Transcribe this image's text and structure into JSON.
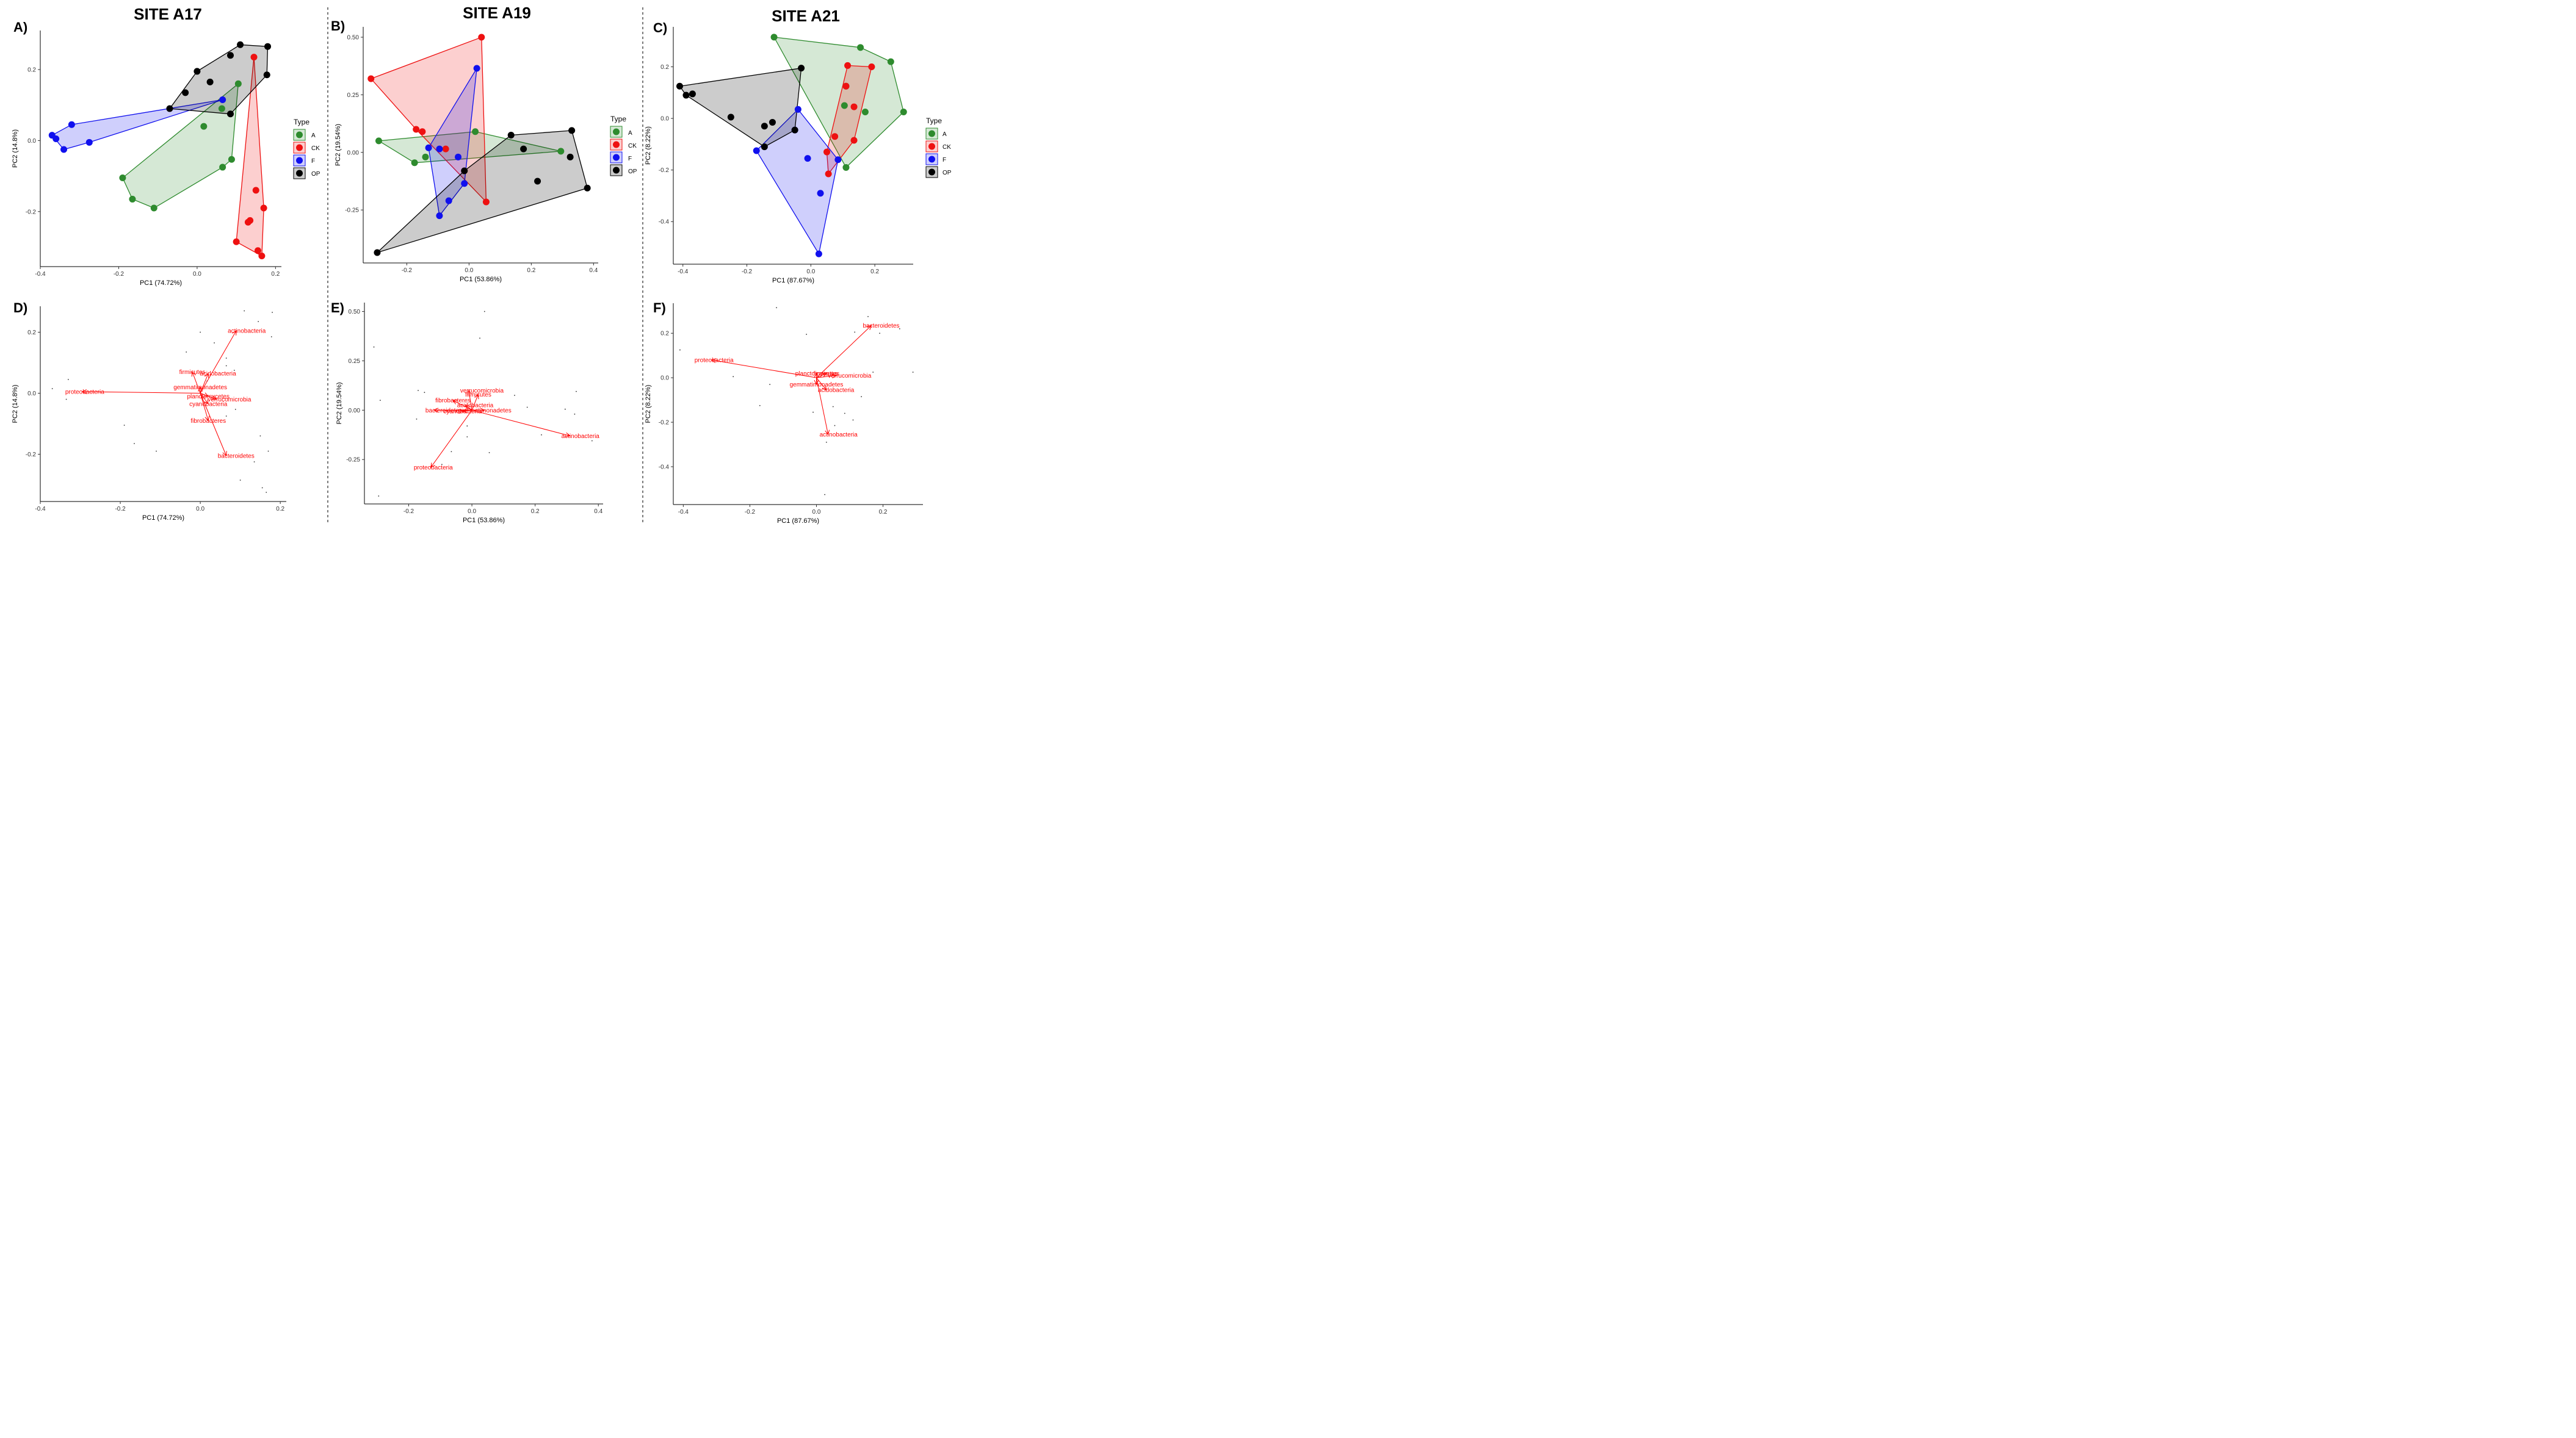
{
  "figure": {
    "sites": [
      "SITE A17",
      "SITE A19",
      "SITE A21"
    ],
    "panel_letters": [
      "A)",
      "B)",
      "C)",
      "D)",
      "E)",
      "F)"
    ],
    "legend": {
      "title": "Type",
      "entries": [
        {
          "label": "A",
          "color": "#2e8b2e"
        },
        {
          "label": "CK",
          "color": "#ee1111"
        },
        {
          "label": "F",
          "color": "#1010ee"
        },
        {
          "label": "OP",
          "color": "#000000"
        }
      ]
    }
  },
  "chart_data": [
    {
      "type": "scatter",
      "panel": "A)",
      "title": "SITE A17",
      "xlabel": "PC1 (74.72%)",
      "ylabel": "PC2 (14.8%)",
      "xlim": [
        -0.4,
        0.215
      ],
      "ylim": [
        -0.355,
        0.31
      ],
      "xticks": [
        -0.4,
        -0.2,
        0.0,
        0.2
      ],
      "xtick_labels": [
        "-0.4",
        "-0.2",
        "0.0",
        "0.2"
      ],
      "yticks": [
        -0.2,
        0.0,
        0.2
      ],
      "ytick_labels": [
        "-0.2",
        "0.0",
        "0.2"
      ],
      "hull_type": "convex",
      "series": [
        {
          "name": "A",
          "points": [
            [
              -0.19,
              -0.105
            ],
            [
              -0.165,
              -0.165
            ],
            [
              -0.11,
              -0.19
            ],
            [
              0.017,
              0.04
            ],
            [
              0.063,
              0.09
            ],
            [
              0.065,
              -0.075
            ],
            [
              0.088,
              -0.053
            ],
            [
              0.105,
              0.16
            ]
          ]
        },
        {
          "name": "CK",
          "points": [
            [
              0.145,
              0.235
            ],
            [
              0.15,
              -0.14
            ],
            [
              0.17,
              -0.19
            ],
            [
              0.135,
              -0.225
            ],
            [
              0.13,
              -0.23
            ],
            [
              0.1,
              -0.285
            ],
            [
              0.155,
              -0.31
            ],
            [
              0.165,
              -0.325
            ]
          ]
        },
        {
          "name": "F",
          "points": [
            [
              -0.37,
              0.015
            ],
            [
              -0.36,
              0.005
            ],
            [
              -0.32,
              0.045
            ],
            [
              -0.34,
              -0.025
            ],
            [
              -0.275,
              -0.005
            ],
            [
              0.065,
              0.115
            ]
          ]
        },
        {
          "name": "OP",
          "points": [
            [
              0.11,
              0.27
            ],
            [
              0.18,
              0.265
            ],
            [
              0.178,
              0.185
            ],
            [
              0.085,
              0.24
            ],
            [
              0.0,
              0.195
            ],
            [
              0.033,
              0.165
            ],
            [
              -0.03,
              0.135
            ],
            [
              -0.07,
              0.09
            ],
            [
              0.085,
              0.075
            ]
          ]
        }
      ]
    },
    {
      "type": "scatter",
      "panel": "B)",
      "title": "SITE A19",
      "xlabel": "PC1 (53.86%)",
      "ylabel": "PC2 (19.54%)",
      "xlim": [
        -0.34,
        0.415
      ],
      "ylim": [
        -0.48,
        0.545
      ],
      "xticks": [
        -0.2,
        0.0,
        0.2,
        0.4
      ],
      "xtick_labels": [
        "-0.2",
        "0.0",
        "0.2",
        "0.4"
      ],
      "yticks": [
        -0.25,
        0.0,
        0.25,
        0.5
      ],
      "ytick_labels": [
        "-0.25",
        "0.00",
        "0.25",
        "0.50"
      ],
      "hull_type": "convex",
      "series": [
        {
          "name": "A",
          "points": [
            [
              -0.29,
              0.05
            ],
            [
              -0.175,
              -0.045
            ],
            [
              -0.14,
              -0.02
            ],
            [
              0.02,
              0.09
            ],
            [
              0.295,
              0.005
            ]
          ]
        },
        {
          "name": "CK",
          "points": [
            [
              0.04,
              0.5
            ],
            [
              -0.315,
              0.32
            ],
            [
              -0.17,
              0.1
            ],
            [
              -0.15,
              0.09
            ],
            [
              -0.075,
              0.015
            ],
            [
              0.055,
              -0.215
            ]
          ]
        },
        {
          "name": "F",
          "points": [
            [
              0.025,
              0.365
            ],
            [
              -0.13,
              0.02
            ],
            [
              -0.095,
              0.015
            ],
            [
              -0.065,
              -0.21
            ],
            [
              -0.035,
              -0.02
            ],
            [
              -0.015,
              -0.135
            ],
            [
              -0.095,
              -0.275
            ]
          ]
        },
        {
          "name": "OP",
          "points": [
            [
              0.33,
              0.095
            ],
            [
              0.135,
              0.075
            ],
            [
              0.175,
              0.015
            ],
            [
              0.325,
              -0.02
            ],
            [
              0.22,
              -0.125
            ],
            [
              0.38,
              -0.155
            ],
            [
              -0.015,
              -0.08
            ],
            [
              -0.295,
              -0.435
            ]
          ]
        }
      ]
    },
    {
      "type": "scatter",
      "panel": "C)",
      "title": "SITE A21",
      "xlabel": "PC1 (87.67%)",
      "ylabel": "PC2 (8.22%)",
      "xlim": [
        -0.43,
        0.32
      ],
      "ylim": [
        -0.565,
        0.355
      ],
      "xticks": [
        -0.4,
        -0.2,
        0.0,
        0.2
      ],
      "xtick_labels": [
        "-0.4",
        "-0.2",
        "0.0",
        "0.2"
      ],
      "yticks": [
        -0.4,
        -0.2,
        0.0,
        0.2
      ],
      "ytick_labels": [
        "-0.4",
        "-0.2",
        "0.0",
        "0.2"
      ],
      "hull_type": "convex",
      "series": [
        {
          "name": "A",
          "points": [
            [
              -0.115,
              0.315
            ],
            [
              0.155,
              0.275
            ],
            [
              0.25,
              0.22
            ],
            [
              0.29,
              0.025
            ],
            [
              0.17,
              0.025
            ],
            [
              0.11,
              0.125
            ],
            [
              0.105,
              0.05
            ],
            [
              0.11,
              -0.19
            ]
          ]
        },
        {
          "name": "CK",
          "points": [
            [
              0.115,
              0.205
            ],
            [
              0.19,
              0.2
            ],
            [
              0.11,
              0.125
            ],
            [
              0.135,
              0.045
            ],
            [
              0.075,
              -0.07
            ],
            [
              0.135,
              -0.085
            ],
            [
              0.05,
              -0.13
            ],
            [
              0.055,
              -0.215
            ]
          ]
        },
        {
          "name": "F",
          "points": [
            [
              -0.04,
              0.035
            ],
            [
              -0.05,
              -0.045
            ],
            [
              -0.17,
              -0.125
            ],
            [
              -0.01,
              -0.155
            ],
            [
              0.085,
              -0.16
            ],
            [
              0.03,
              -0.29
            ],
            [
              0.025,
              -0.525
            ]
          ]
        },
        {
          "name": "OP",
          "points": [
            [
              -0.41,
              0.125
            ],
            [
              -0.39,
              0.09
            ],
            [
              -0.37,
              0.095
            ],
            [
              -0.25,
              0.005
            ],
            [
              -0.145,
              -0.03
            ],
            [
              -0.12,
              -0.015
            ],
            [
              -0.145,
              -0.11
            ],
            [
              -0.05,
              -0.045
            ],
            [
              -0.03,
              0.195
            ]
          ]
        }
      ]
    },
    {
      "type": "scatter",
      "panel": "D)",
      "title": "",
      "xlabel": "PC1 (74.72%)",
      "ylabel": "PC2 (14.8%)",
      "xlim": [
        -0.4,
        0.215
      ],
      "ylim": [
        -0.355,
        0.285
      ],
      "xticks": [
        -0.4,
        -0.2,
        0.0,
        0.2
      ],
      "xtick_labels": [
        "-0.4",
        "-0.2",
        "0.0",
        "0.2"
      ],
      "yticks": [
        -0.2,
        0.0,
        0.2
      ],
      "ytick_labels": [
        "-0.2",
        "0.0",
        "0.2"
      ],
      "dots": [
        [
          -0.37,
          0.015
        ],
        [
          -0.33,
          0.045
        ],
        [
          -0.335,
          -0.02
        ],
        [
          -0.19,
          -0.105
        ],
        [
          -0.165,
          -0.165
        ],
        [
          -0.11,
          -0.19
        ],
        [
          -0.035,
          0.135
        ],
        [
          0.0,
          0.2
        ],
        [
          0.035,
          0.165
        ],
        [
          0.065,
          0.09
        ],
        [
          0.085,
          0.075
        ],
        [
          0.11,
          0.27
        ],
        [
          0.145,
          0.235
        ],
        [
          0.18,
          0.265
        ],
        [
          0.178,
          0.185
        ],
        [
          0.065,
          -0.075
        ],
        [
          0.088,
          -0.053
        ],
        [
          0.15,
          -0.14
        ],
        [
          0.17,
          -0.19
        ],
        [
          0.135,
          -0.225
        ],
        [
          0.1,
          -0.285
        ],
        [
          0.155,
          -0.31
        ],
        [
          0.165,
          -0.325
        ],
        [
          0.065,
          0.115
        ],
        [
          0.017,
          0.04
        ]
      ],
      "vectors": [
        {
          "label": "actinobacteria",
          "x": 0.09,
          "y": 0.205
        },
        {
          "label": "firmicutes",
          "x": -0.02,
          "y": 0.07
        },
        {
          "label": "acidobacteria",
          "x": 0.02,
          "y": 0.065
        },
        {
          "label": "gemmatimonadetes",
          "x": 0.0,
          "y": 0.02
        },
        {
          "label": "planctomycetes",
          "x": 0.02,
          "y": -0.01
        },
        {
          "label": "verrucomicrobia",
          "x": 0.04,
          "y": -0.02
        },
        {
          "label": "cyanobacteria",
          "x": 0.02,
          "y": -0.035
        },
        {
          "label": "fibrobacteres",
          "x": 0.02,
          "y": -0.09
        },
        {
          "label": "bacteroidetes",
          "x": 0.065,
          "y": -0.205
        },
        {
          "label": "proteobacteria",
          "x": -0.295,
          "y": 0.005
        }
      ]
    },
    {
      "type": "scatter",
      "panel": "E)",
      "title": "",
      "xlabel": "PC1 (53.86%)",
      "ylabel": "PC2 (19.54%)",
      "xlim": [
        -0.34,
        0.415
      ],
      "ylim": [
        -0.475,
        0.545
      ],
      "xticks": [
        -0.2,
        0.0,
        0.2,
        0.4
      ],
      "xtick_labels": [
        "-0.2",
        "0.0",
        "0.2",
        "0.4"
      ],
      "yticks": [
        -0.25,
        0.0,
        0.25,
        0.5
      ],
      "ytick_labels": [
        "-0.25",
        "0.00",
        "0.25",
        "0.50"
      ],
      "dots": [
        [
          -0.31,
          0.32
        ],
        [
          -0.29,
          0.05
        ],
        [
          -0.17,
          0.1
        ],
        [
          -0.15,
          0.09
        ],
        [
          -0.175,
          -0.045
        ],
        [
          0.04,
          0.5
        ],
        [
          0.025,
          0.365
        ],
        [
          0.135,
          0.075
        ],
        [
          0.175,
          0.015
        ],
        [
          0.33,
          0.095
        ],
        [
          0.325,
          -0.02
        ],
        [
          0.22,
          -0.125
        ],
        [
          0.38,
          -0.155
        ],
        [
          -0.015,
          -0.08
        ],
        [
          -0.065,
          -0.21
        ],
        [
          -0.095,
          -0.275
        ],
        [
          0.055,
          -0.215
        ],
        [
          -0.295,
          -0.435
        ],
        [
          0.295,
          0.005
        ],
        [
          -0.015,
          -0.135
        ]
      ],
      "vectors": [
        {
          "label": "verrucomicrobia",
          "x": -0.01,
          "y": 0.1
        },
        {
          "label": "firmicutes",
          "x": 0.02,
          "y": 0.08
        },
        {
          "label": "fibrobacteres",
          "x": -0.06,
          "y": 0.05
        },
        {
          "label": "acidobacteria",
          "x": -0.02,
          "y": 0.025
        },
        {
          "label": "gemmatimonadetes",
          "x": 0.04,
          "y": 0.0
        },
        {
          "label": "cyanobacteria",
          "x": -0.03,
          "y": -0.005
        },
        {
          "label": "bacteroidetes",
          "x": -0.12,
          "y": 0.0
        },
        {
          "label": "actinobacteria",
          "x": 0.31,
          "y": -0.13
        },
        {
          "label": "proteobacteria",
          "x": -0.13,
          "y": -0.29
        }
      ]
    },
    {
      "type": "scatter",
      "panel": "F)",
      "title": "",
      "xlabel": "PC1 (87.67%)",
      "ylabel": "PC2 (8.22%)",
      "xlim": [
        -0.43,
        0.32
      ],
      "ylim": [
        -0.57,
        0.335
      ],
      "xticks": [
        -0.4,
        -0.2,
        0.0,
        0.2
      ],
      "xtick_labels": [
        "-0.4",
        "-0.2",
        "0.0",
        "0.2"
      ],
      "yticks": [
        -0.4,
        -0.2,
        0.0,
        0.2
      ],
      "ytick_labels": [
        "-0.4",
        "-0.2",
        "0.0",
        "0.2"
      ],
      "dots": [
        [
          -0.41,
          0.125
        ],
        [
          -0.12,
          0.315
        ],
        [
          -0.03,
          0.195
        ],
        [
          -0.25,
          0.005
        ],
        [
          -0.14,
          -0.03
        ],
        [
          -0.17,
          -0.125
        ],
        [
          0.155,
          0.275
        ],
        [
          0.25,
          0.22
        ],
        [
          0.29,
          0.025
        ],
        [
          0.17,
          0.025
        ],
        [
          0.115,
          0.205
        ],
        [
          0.19,
          0.2
        ],
        [
          0.135,
          -0.085
        ],
        [
          0.11,
          -0.19
        ],
        [
          0.085,
          -0.16
        ],
        [
          -0.01,
          -0.155
        ],
        [
          0.03,
          -0.29
        ],
        [
          0.025,
          -0.525
        ],
        [
          0.05,
          -0.13
        ],
        [
          0.055,
          -0.215
        ]
      ],
      "vectors": [
        {
          "label": "bacteroidetes",
          "x": 0.165,
          "y": 0.235
        },
        {
          "label": "proteobacteria",
          "x": -0.315,
          "y": 0.08
        },
        {
          "label": "planctomycetes",
          "x": 0.0,
          "y": 0.02
        },
        {
          "label": "firmicutes",
          "x": 0.03,
          "y": 0.02
        },
        {
          "label": "verrucomicrobia",
          "x": 0.06,
          "y": 0.01
        },
        {
          "label": "gemmatimonadetes",
          "x": 0.0,
          "y": -0.03
        },
        {
          "label": "acidobacteria",
          "x": 0.03,
          "y": -0.055
        },
        {
          "label": "actinobacteria",
          "x": 0.035,
          "y": -0.255
        }
      ]
    }
  ]
}
